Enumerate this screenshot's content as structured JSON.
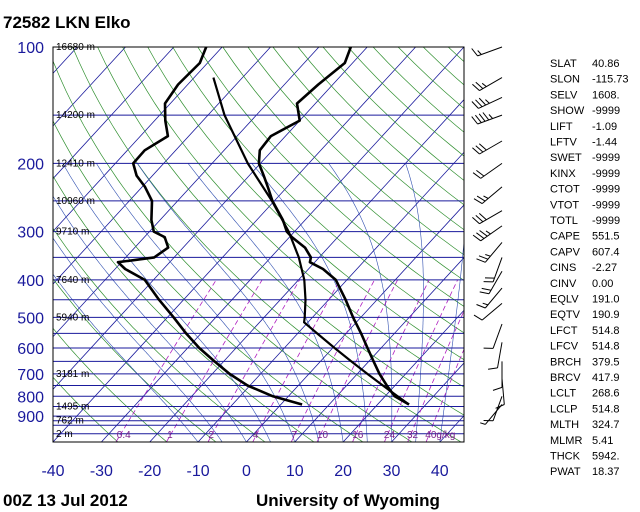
{
  "chart_data": {
    "type": "skew-t",
    "title": "72582 LKN Elko",
    "footer_left": "00Z 13 Jul 2012",
    "footer_right": "University of Wyoming",
    "pressure_ticks": [
      100,
      200,
      300,
      400,
      500,
      600,
      700,
      800,
      900
    ],
    "temperature_ticks": [
      -40,
      -30,
      -20,
      -10,
      0,
      10,
      20,
      30,
      40
    ],
    "plim": [
      100,
      1050
    ],
    "xlim": [
      -40,
      45
    ],
    "height_labels": [
      {
        "p": 100,
        "text": "16680 m"
      },
      {
        "p": 150,
        "text": "14200 m"
      },
      {
        "p": 200,
        "text": "12410 m"
      },
      {
        "p": 250,
        "text": "10960 m"
      },
      {
        "p": 300,
        "text": "9710 m"
      },
      {
        "p": 400,
        "text": "7640 m"
      },
      {
        "p": 500,
        "text": "5940 m"
      },
      {
        "p": 700,
        "text": "3181 m"
      },
      {
        "p": 850,
        "text": "1495 m"
      },
      {
        "p": 925,
        "text": "762 m"
      },
      {
        "p": 1000,
        "text": "2 m"
      }
    ],
    "mixing_ratio_labels": [
      "0.4",
      "1",
      "2",
      "4",
      "7",
      "10",
      "16",
      "24",
      "32",
      "40g/kg"
    ],
    "mixing_ratio_values": [
      0.4,
      1,
      2,
      4,
      7,
      10,
      16,
      24,
      32,
      40
    ],
    "temperature": {
      "p": [
        840,
        800,
        750,
        700,
        650,
        600,
        550,
        500,
        450,
        400,
        375,
        360,
        350,
        330,
        310,
        300,
        280,
        250,
        230,
        215,
        200,
        185,
        170,
        155,
        140,
        125,
        110,
        100
      ],
      "t": [
        26.5,
        22.0,
        18.3,
        14.6,
        11.0,
        7.2,
        3.1,
        -1.6,
        -6.5,
        -12.3,
        -17.0,
        -21.0,
        -21.7,
        -24.8,
        -29.5,
        -31.6,
        -34.6,
        -40.4,
        -44.0,
        -47.0,
        -50.3,
        -52.6,
        -53.0,
        -50.0,
        -53.8,
        -53.0,
        -51.6,
        -53.4
      ]
    },
    "dewpoint": {
      "p": [
        840,
        800,
        750,
        700,
        650,
        600,
        550,
        500,
        450,
        400,
        375,
        360,
        350,
        330,
        310,
        300,
        280,
        250,
        230,
        215,
        200,
        185,
        170,
        155,
        140,
        125,
        110,
        100
      ],
      "td": [
        4.4,
        -3.2,
        -10.5,
        -16.4,
        -21.9,
        -27.6,
        -33.1,
        -38.7,
        -45.1,
        -51.8,
        -57.9,
        -60.7,
        -54.1,
        -53.1,
        -55.8,
        -59.1,
        -61.8,
        -65.3,
        -69.4,
        -73.3,
        -76.3,
        -76.4,
        -74.3,
        -77.8,
        -81.1,
        -82.0,
        -81.6,
        -83.3
      ]
    },
    "parcel": {
      "p": [
        840,
        800,
        750,
        700,
        650,
        600,
        550,
        514.8,
        500,
        450,
        400,
        350,
        300,
        250,
        200,
        150,
        120
      ],
      "t": [
        26.5,
        22.6,
        17.5,
        12.1,
        6.4,
        0.4,
        -6.0,
        -10.8,
        -11.6,
        -14.8,
        -18.8,
        -24.2,
        -31.2,
        -40.5,
        -52.6,
        -66.6,
        -76.0
      ]
    },
    "wind_barbs": [
      {
        "p": 100,
        "dir": 250,
        "spd": 15
      },
      {
        "p": 120,
        "dir": 240,
        "spd": 25
      },
      {
        "p": 135,
        "dir": 245,
        "spd": 35
      },
      {
        "p": 150,
        "dir": 250,
        "spd": 45
      },
      {
        "p": 175,
        "dir": 240,
        "spd": 30
      },
      {
        "p": 200,
        "dir": 235,
        "spd": 20
      },
      {
        "p": 230,
        "dir": 230,
        "spd": 25
      },
      {
        "p": 265,
        "dir": 240,
        "spd": 30
      },
      {
        "p": 290,
        "dir": 235,
        "spd": 35
      },
      {
        "p": 320,
        "dir": 220,
        "spd": 25
      },
      {
        "p": 350,
        "dir": 200,
        "spd": 20
      },
      {
        "p": 380,
        "dir": 210,
        "spd": 20
      },
      {
        "p": 420,
        "dir": 220,
        "spd": 15
      },
      {
        "p": 460,
        "dir": 230,
        "spd": 10
      },
      {
        "p": 520,
        "dir": 200,
        "spd": 10
      },
      {
        "p": 580,
        "dir": 190,
        "spd": 10
      },
      {
        "p": 650,
        "dir": 180,
        "spd": 10
      },
      {
        "p": 720,
        "dir": 175,
        "spd": 10
      },
      {
        "p": 800,
        "dir": 200,
        "spd": 10
      },
      {
        "p": 840,
        "dir": 220,
        "spd": 5
      }
    ],
    "indices": [
      {
        "name": "SLAT",
        "value": "40.86"
      },
      {
        "name": "SLON",
        "value": "-115.73"
      },
      {
        "name": "SELV",
        "value": "1608."
      },
      {
        "name": "SHOW",
        "value": "-9999"
      },
      {
        "name": "LIFT",
        "value": "-1.09"
      },
      {
        "name": "LFTV",
        "value": "-1.44"
      },
      {
        "name": "SWET",
        "value": "-9999"
      },
      {
        "name": "KINX",
        "value": "-9999"
      },
      {
        "name": "CTOT",
        "value": "-9999"
      },
      {
        "name": "VTOT",
        "value": "-9999"
      },
      {
        "name": "TOTL",
        "value": "-9999"
      },
      {
        "name": "CAPE",
        "value": "551.5"
      },
      {
        "name": "CAPV",
        "value": "607.4"
      },
      {
        "name": "CINS",
        "value": "-2.27"
      },
      {
        "name": "CINV",
        "value": "0.00"
      },
      {
        "name": "EQLV",
        "value": "191.0"
      },
      {
        "name": "EQTV",
        "value": "190.9"
      },
      {
        "name": "LFCT",
        "value": "514.8"
      },
      {
        "name": "LFCV",
        "value": "514.8"
      },
      {
        "name": "BRCH",
        "value": "379.5"
      },
      {
        "name": "BRCV",
        "value": "417.9"
      },
      {
        "name": "LCLT",
        "value": "268.6"
      },
      {
        "name": "LCLP",
        "value": "514.8"
      },
      {
        "name": "MLTH",
        "value": "324.7"
      },
      {
        "name": "MLMR",
        "value": "5.41"
      },
      {
        "name": "THCK",
        "value": "5942."
      },
      {
        "name": "PWAT",
        "value": "18.37"
      }
    ],
    "colors": {
      "isobar": "#1a1a9c",
      "isotherm": "#1a1a9c",
      "dry_adiabat": "#2f8f2f",
      "moist_adiabat": "#2f4fb0",
      "mixing_ratio": "#b020c0",
      "sounding": "#000000",
      "parcel": "#000000"
    }
  }
}
